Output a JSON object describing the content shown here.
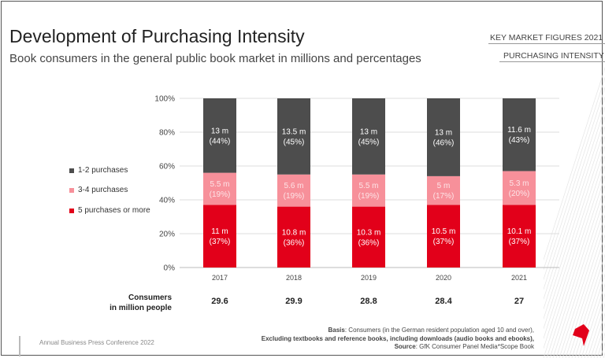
{
  "header": {
    "title": "Development of Purchasing Intensity",
    "subtitle": "Book consumers in the general public book market in millions and percentages",
    "tag_primary": "KEY MARKET FIGURES 2021",
    "tag_secondary": "PURCHASING INTENSITY"
  },
  "colors": {
    "one_two": "#4d4d4d",
    "three_four": "#f7909a",
    "five_plus": "#e2001a"
  },
  "chart_data": {
    "type": "bar",
    "stacked": true,
    "categories": [
      "2017",
      "2018",
      "2019",
      "2020",
      "2021"
    ],
    "ylim": [
      0,
      100
    ],
    "yticks": [
      "0%",
      "20%",
      "40%",
      "60%",
      "80%",
      "100%"
    ],
    "grid": true,
    "legend_position": "left",
    "series": [
      {
        "name": "5 purchases or more",
        "percent": [
          37,
          36,
          36,
          37,
          37
        ],
        "labels": [
          "11 m",
          "10.8 m",
          "10.3 m",
          "10.5 m",
          "10.1 m"
        ],
        "pct_labels": [
          "(37%)",
          "(36%)",
          "(36%)",
          "(37%)",
          "(37%)"
        ]
      },
      {
        "name": "3-4 purchases",
        "percent": [
          19,
          19,
          19,
          17,
          20
        ],
        "labels": [
          "5.5 m",
          "5.6 m",
          "5.5 m",
          "5 m",
          "5.3 m"
        ],
        "pct_labels": [
          "(19%)",
          "(19%)",
          "(19%)",
          "(17%)",
          "(20%)"
        ]
      },
      {
        "name": "1-2 purchases",
        "percent": [
          44,
          45,
          45,
          46,
          43
        ],
        "labels": [
          "13 m",
          "13.5 m",
          "13 m",
          "13 m",
          "11.6 m"
        ],
        "pct_labels": [
          "(44%)",
          "(45%)",
          "(45%)",
          "(46%)",
          "(43%)"
        ]
      }
    ]
  },
  "consumers": {
    "label_line1": "Consumers",
    "label_line2": "in million people",
    "values": [
      "29.6",
      "29.9",
      "28.8",
      "28.4",
      "27"
    ]
  },
  "footer": {
    "left": "Annual Business Press Conference  2022",
    "basis_label": "Basis",
    "basis_text": ": Consumers (in the German resident population aged 10 and over),",
    "line2": "Excluding textbooks and reference books, including downloads (audio books and ebooks),",
    "source_label": "Source",
    "source_text": ": GfK Consumer Panel Media*Scope Book"
  }
}
